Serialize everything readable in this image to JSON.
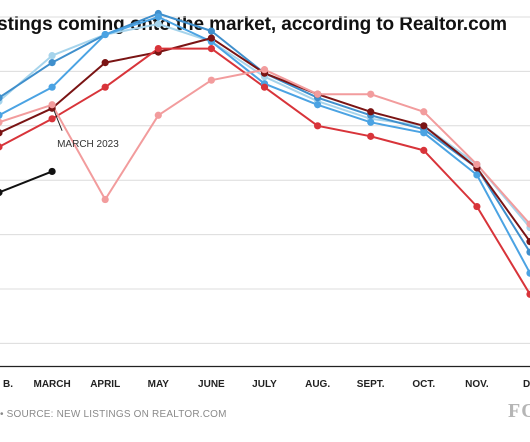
{
  "title": "istings coming onto the market, according to Realtor.com",
  "source": "• SOURCE: NEW LISTINGS ON REALTOR.COM",
  "logo": "FO",
  "chart_data": {
    "type": "line",
    "title": "istings coming onto the market, according to Realtor.com",
    "categories": [
      "B.",
      "MARCH",
      "APRIL",
      "MAY",
      "JUNE",
      "JULY",
      "AUG.",
      "SEPT.",
      "OCT.",
      "NOV.",
      "DE"
    ],
    "ylim": [
      0,
      100
    ],
    "grid": true,
    "annotation": {
      "text": "MARCH 2023",
      "series_index": 5,
      "point_index": 1
    },
    "series": [
      {
        "color": "#a6d4ec",
        "values": [
          76,
          89,
          95,
          98,
          93,
          83,
          76,
          71,
          69,
          58,
          40
        ]
      },
      {
        "color": "#3f8fcc",
        "values": [
          77,
          87,
          95,
          101,
          96,
          84,
          77,
          72,
          68,
          57,
          33
        ]
      },
      {
        "color": "#4ba3e3",
        "values": [
          72,
          80,
          95,
          100,
          93,
          81,
          75,
          70,
          67,
          55,
          27
        ]
      },
      {
        "color": "#7a1414",
        "values": [
          67,
          74,
          87,
          90,
          94,
          84,
          78,
          73,
          69,
          57,
          36
        ]
      },
      {
        "color": "#d8343a",
        "values": [
          63,
          71,
          80,
          91,
          91,
          80,
          69,
          66,
          62,
          46,
          21
        ]
      },
      {
        "color": "#f29c9d",
        "values": [
          70,
          75,
          48,
          72,
          82,
          85,
          78,
          78,
          73,
          58,
          41
        ]
      },
      {
        "color": "#111111",
        "values": [
          50,
          56,
          null,
          null,
          null,
          null,
          null,
          null,
          null,
          null,
          null
        ]
      }
    ]
  }
}
